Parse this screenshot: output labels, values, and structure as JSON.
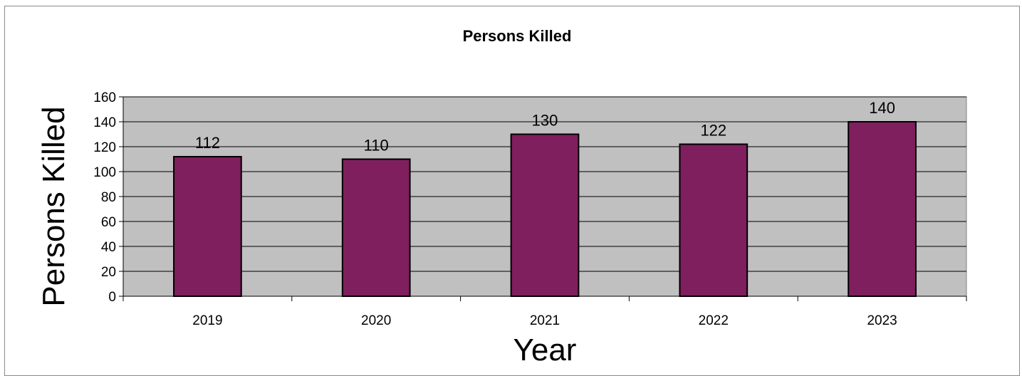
{
  "chart_data": {
    "type": "bar",
    "title": "Persons Killed",
    "xlabel": "Year",
    "ylabel": "Persons Killed",
    "categories": [
      "2019",
      "2020",
      "2021",
      "2022",
      "2023"
    ],
    "values": [
      112,
      110,
      130,
      122,
      140
    ],
    "ylim": [
      0,
      160
    ],
    "yticks": [
      0,
      20,
      40,
      60,
      80,
      100,
      120,
      140,
      160
    ],
    "grid": true,
    "legend": "none",
    "colors": {
      "bar": "#7f1f5e",
      "plot_background": "#c0c0c0",
      "gridline": "#000000"
    }
  }
}
